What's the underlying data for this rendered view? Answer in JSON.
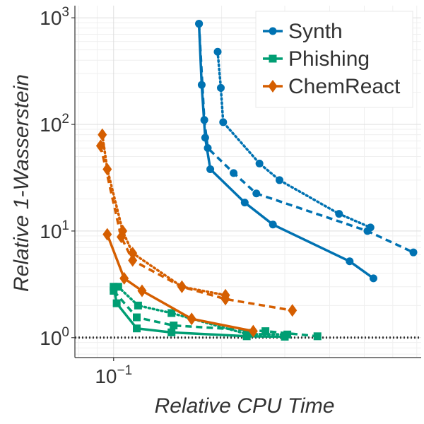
{
  "chart_data": {
    "type": "line",
    "x_scale": "log",
    "y_scale": "log",
    "xlabel": "Relative CPU Time",
    "ylabel": "Relative 1-Wasserstein",
    "xlim": [
      0.078,
      0.72
    ],
    "ylim": [
      0.65,
      1300
    ],
    "x_ticks": [
      {
        "value": 0.1,
        "base": "10",
        "exp": "−1"
      }
    ],
    "y_ticks": [
      {
        "value": 1,
        "base": "10",
        "exp": "0"
      },
      {
        "value": 10,
        "base": "10",
        "exp": "1"
      },
      {
        "value": 100,
        "base": "10",
        "exp": "2"
      },
      {
        "value": 1000,
        "base": "10",
        "exp": "3"
      }
    ],
    "reference_line": {
      "y": 1.0,
      "style": "dotted",
      "color": "#333333"
    },
    "grid": true,
    "legend": {
      "position": "top-right",
      "entries": [
        {
          "label": "Synth",
          "color": "#0072b2",
          "marker": "circle"
        },
        {
          "label": "Phishing",
          "color": "#009e73",
          "marker": "square"
        },
        {
          "label": "ChemReact",
          "color": "#d55e00",
          "marker": "diamond"
        }
      ]
    },
    "series": [
      {
        "name": "Synth",
        "style": "solid",
        "color": "#0072b2",
        "marker": "circle",
        "x": [
          0.173,
          0.176,
          0.18,
          0.186,
          0.232,
          0.278,
          0.455,
          0.53
        ],
        "y": [
          880,
          235,
          75,
          38,
          18.5,
          11.5,
          5.2,
          3.6
        ]
      },
      {
        "name": "Synth",
        "style": "dashed",
        "color": "#0072b2",
        "marker": "circle",
        "x": [
          0.173,
          0.179,
          0.183,
          0.216,
          0.25,
          0.51,
          0.685
        ],
        "y": [
          880,
          110,
          60,
          35,
          22.5,
          10,
          6.3
        ]
      },
      {
        "name": "Synth",
        "style": "dotted",
        "color": "#0072b2",
        "marker": "circle",
        "x": [
          0.195,
          0.199,
          0.202,
          0.255,
          0.29,
          0.425,
          0.52
        ],
        "y": [
          480,
          220,
          105,
          43,
          30,
          14.5,
          10.8
        ]
      },
      {
        "name": "Phishing",
        "style": "solid",
        "color": "#009e73",
        "marker": "square",
        "x": [
          0.1,
          0.102,
          0.116,
          0.145,
          0.235,
          0.3
        ],
        "y": [
          3.0,
          2.1,
          1.22,
          1.12,
          1.03,
          1.02
        ]
      },
      {
        "name": "Phishing",
        "style": "dashed",
        "color": "#009e73",
        "marker": "square",
        "x": [
          0.1,
          0.116,
          0.147,
          0.265,
          0.37
        ],
        "y": [
          2.75,
          1.55,
          1.3,
          1.15,
          1.03
        ]
      },
      {
        "name": "Phishing",
        "style": "dotted",
        "color": "#009e73",
        "marker": "square",
        "x": [
          0.103,
          0.117,
          0.145,
          0.235,
          0.305
        ],
        "y": [
          3.0,
          2.0,
          1.7,
          1.08,
          1.07
        ]
      },
      {
        "name": "ChemReact",
        "style": "solid",
        "color": "#d55e00",
        "marker": "diamond",
        "x": [
          0.096,
          0.107,
          0.12,
          0.165,
          0.245
        ],
        "y": [
          9.3,
          3.6,
          2.75,
          1.5,
          1.15
        ]
      },
      {
        "name": "ChemReact",
        "style": "dashed",
        "color": "#d55e00",
        "marker": "diamond",
        "x": [
          0.092,
          0.105,
          0.113,
          0.155,
          0.205,
          0.315
        ],
        "y": [
          63,
          8.8,
          5.3,
          3.0,
          2.3,
          1.8
        ]
      },
      {
        "name": "ChemReact",
        "style": "dotted",
        "color": "#d55e00",
        "marker": "diamond",
        "x": [
          0.093,
          0.096,
          0.106,
          0.113,
          0.155,
          0.205
        ],
        "y": [
          80,
          38,
          10,
          6.2,
          3.0,
          2.5
        ]
      }
    ]
  }
}
